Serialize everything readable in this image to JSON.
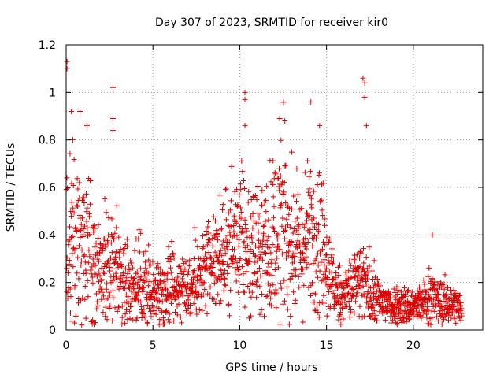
{
  "chart_data": {
    "type": "scatter",
    "title": "Day 307 of 2023, SRMTID for receiver kir0",
    "xlabel": "GPS time / hours",
    "ylabel": "SRMTID / TECUs",
    "xlim": [
      0,
      24
    ],
    "ylim": [
      0,
      1.2
    ],
    "xticks": [
      0,
      5,
      10,
      15,
      20
    ],
    "xtick_labels": [
      "0",
      "5",
      "10",
      "15",
      "20"
    ],
    "yticks": [
      0,
      0.2,
      0.4,
      0.6,
      0.8,
      1.0,
      1.2
    ],
    "ytick_labels": [
      "0",
      "0.2",
      "0.4",
      "0.6",
      "0.8",
      "1",
      "1.2"
    ],
    "grid": true,
    "marker": "plus",
    "series_color": "#dd0000",
    "notable_points": [
      {
        "x": 0.05,
        "y": 1.13
      },
      {
        "x": 0.05,
        "y": 1.1
      },
      {
        "x": 0.3,
        "y": 0.92
      },
      {
        "x": 0.8,
        "y": 0.92
      },
      {
        "x": 1.2,
        "y": 0.86
      },
      {
        "x": 2.7,
        "y": 1.02
      },
      {
        "x": 2.7,
        "y": 0.89
      },
      {
        "x": 2.7,
        "y": 0.84
      },
      {
        "x": 10.3,
        "y": 1.0
      },
      {
        "x": 10.3,
        "y": 0.97
      },
      {
        "x": 10.3,
        "y": 0.86
      },
      {
        "x": 12.3,
        "y": 0.89
      },
      {
        "x": 12.6,
        "y": 0.88
      },
      {
        "x": 14.1,
        "y": 0.96
      },
      {
        "x": 14.6,
        "y": 0.86
      },
      {
        "x": 17.1,
        "y": 1.06
      },
      {
        "x": 17.2,
        "y": 1.04
      },
      {
        "x": 17.2,
        "y": 0.98
      },
      {
        "x": 17.3,
        "y": 0.86
      },
      {
        "x": 21.1,
        "y": 0.4
      }
    ],
    "activity_envelope": {
      "x": [
        0,
        0.5,
        1,
        1.5,
        2,
        2.5,
        3,
        3.5,
        4,
        4.5,
        5,
        5.5,
        6,
        6.5,
        7,
        7.5,
        8,
        8.5,
        9,
        9.5,
        10,
        10.5,
        11,
        11.5,
        12,
        12.5,
        13,
        13.5,
        14,
        14.5,
        15,
        15.5,
        16,
        16.5,
        17,
        17.5,
        18,
        18.5,
        19,
        19.5,
        20,
        20.5,
        21,
        21.5,
        22,
        22.5,
        22.8
      ],
      "mean": [
        0.42,
        0.4,
        0.36,
        0.3,
        0.28,
        0.27,
        0.26,
        0.22,
        0.2,
        0.18,
        0.17,
        0.16,
        0.2,
        0.2,
        0.19,
        0.2,
        0.24,
        0.26,
        0.32,
        0.36,
        0.38,
        0.35,
        0.32,
        0.36,
        0.4,
        0.44,
        0.36,
        0.32,
        0.4,
        0.42,
        0.3,
        0.16,
        0.15,
        0.18,
        0.2,
        0.16,
        0.12,
        0.11,
        0.1,
        0.1,
        0.1,
        0.11,
        0.14,
        0.12,
        0.11,
        0.1,
        0.09
      ],
      "spread": [
        0.2,
        0.2,
        0.18,
        0.14,
        0.12,
        0.12,
        0.12,
        0.1,
        0.09,
        0.08,
        0.07,
        0.07,
        0.08,
        0.08,
        0.08,
        0.08,
        0.09,
        0.1,
        0.11,
        0.12,
        0.14,
        0.14,
        0.12,
        0.14,
        0.17,
        0.18,
        0.14,
        0.13,
        0.16,
        0.16,
        0.12,
        0.06,
        0.06,
        0.08,
        0.08,
        0.07,
        0.05,
        0.05,
        0.04,
        0.04,
        0.04,
        0.04,
        0.06,
        0.05,
        0.04,
        0.04,
        0.04
      ]
    },
    "n_points": 1800,
    "random_seed": 307
  }
}
